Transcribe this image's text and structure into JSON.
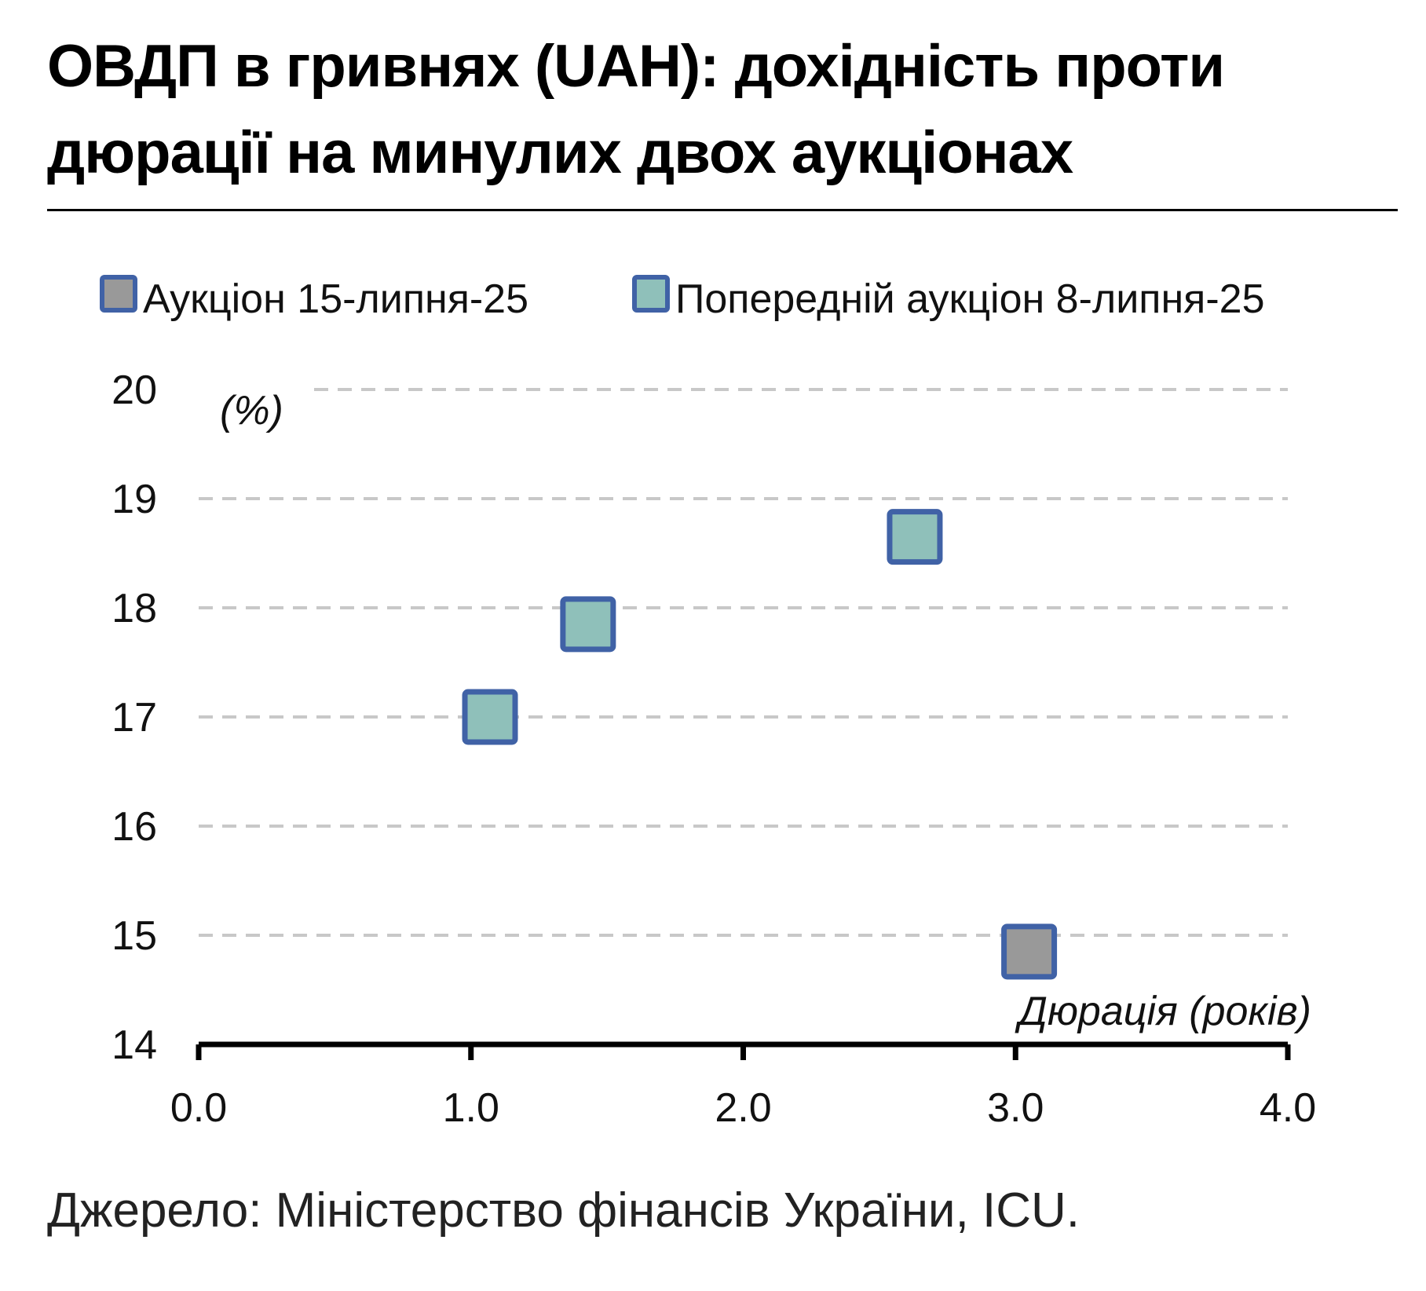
{
  "title": "ОВДП в гривнях (UAH): дохідність проти дюрації на минулих двох аукціонах",
  "source": "Джерело: Міністерство фінансів України, ICU.",
  "chart_data": {
    "type": "scatter",
    "title": "ОВДП в гривнях (UAH): дохідність проти дюрації на минулих двох аукціонах",
    "xlabel": "Дюрація (років)",
    "ylabel": "(%)",
    "xlim": [
      0,
      4
    ],
    "ylim": [
      14,
      20
    ],
    "x_ticks": [
      "0.0",
      "1.0",
      "2.0",
      "3.0",
      "4.0"
    ],
    "y_ticks": [
      "14",
      "15",
      "16",
      "17",
      "18",
      "19",
      "20"
    ],
    "grid": "horizontal-dashed",
    "legend_placement": "top",
    "series": [
      {
        "name": "Аукціон 15-липня-25",
        "color": "#999999",
        "edge_color": "#4062a6",
        "points": [
          {
            "x": 3.05,
            "y": 14.85
          }
        ]
      },
      {
        "name": "Попередній аукціон 8-липня-25",
        "color": "#8fc0ba",
        "edge_color": "#4062a6",
        "points": [
          {
            "x": 1.07,
            "y": 17.0
          },
          {
            "x": 1.43,
            "y": 17.85
          },
          {
            "x": 2.63,
            "y": 18.65
          }
        ]
      }
    ]
  }
}
